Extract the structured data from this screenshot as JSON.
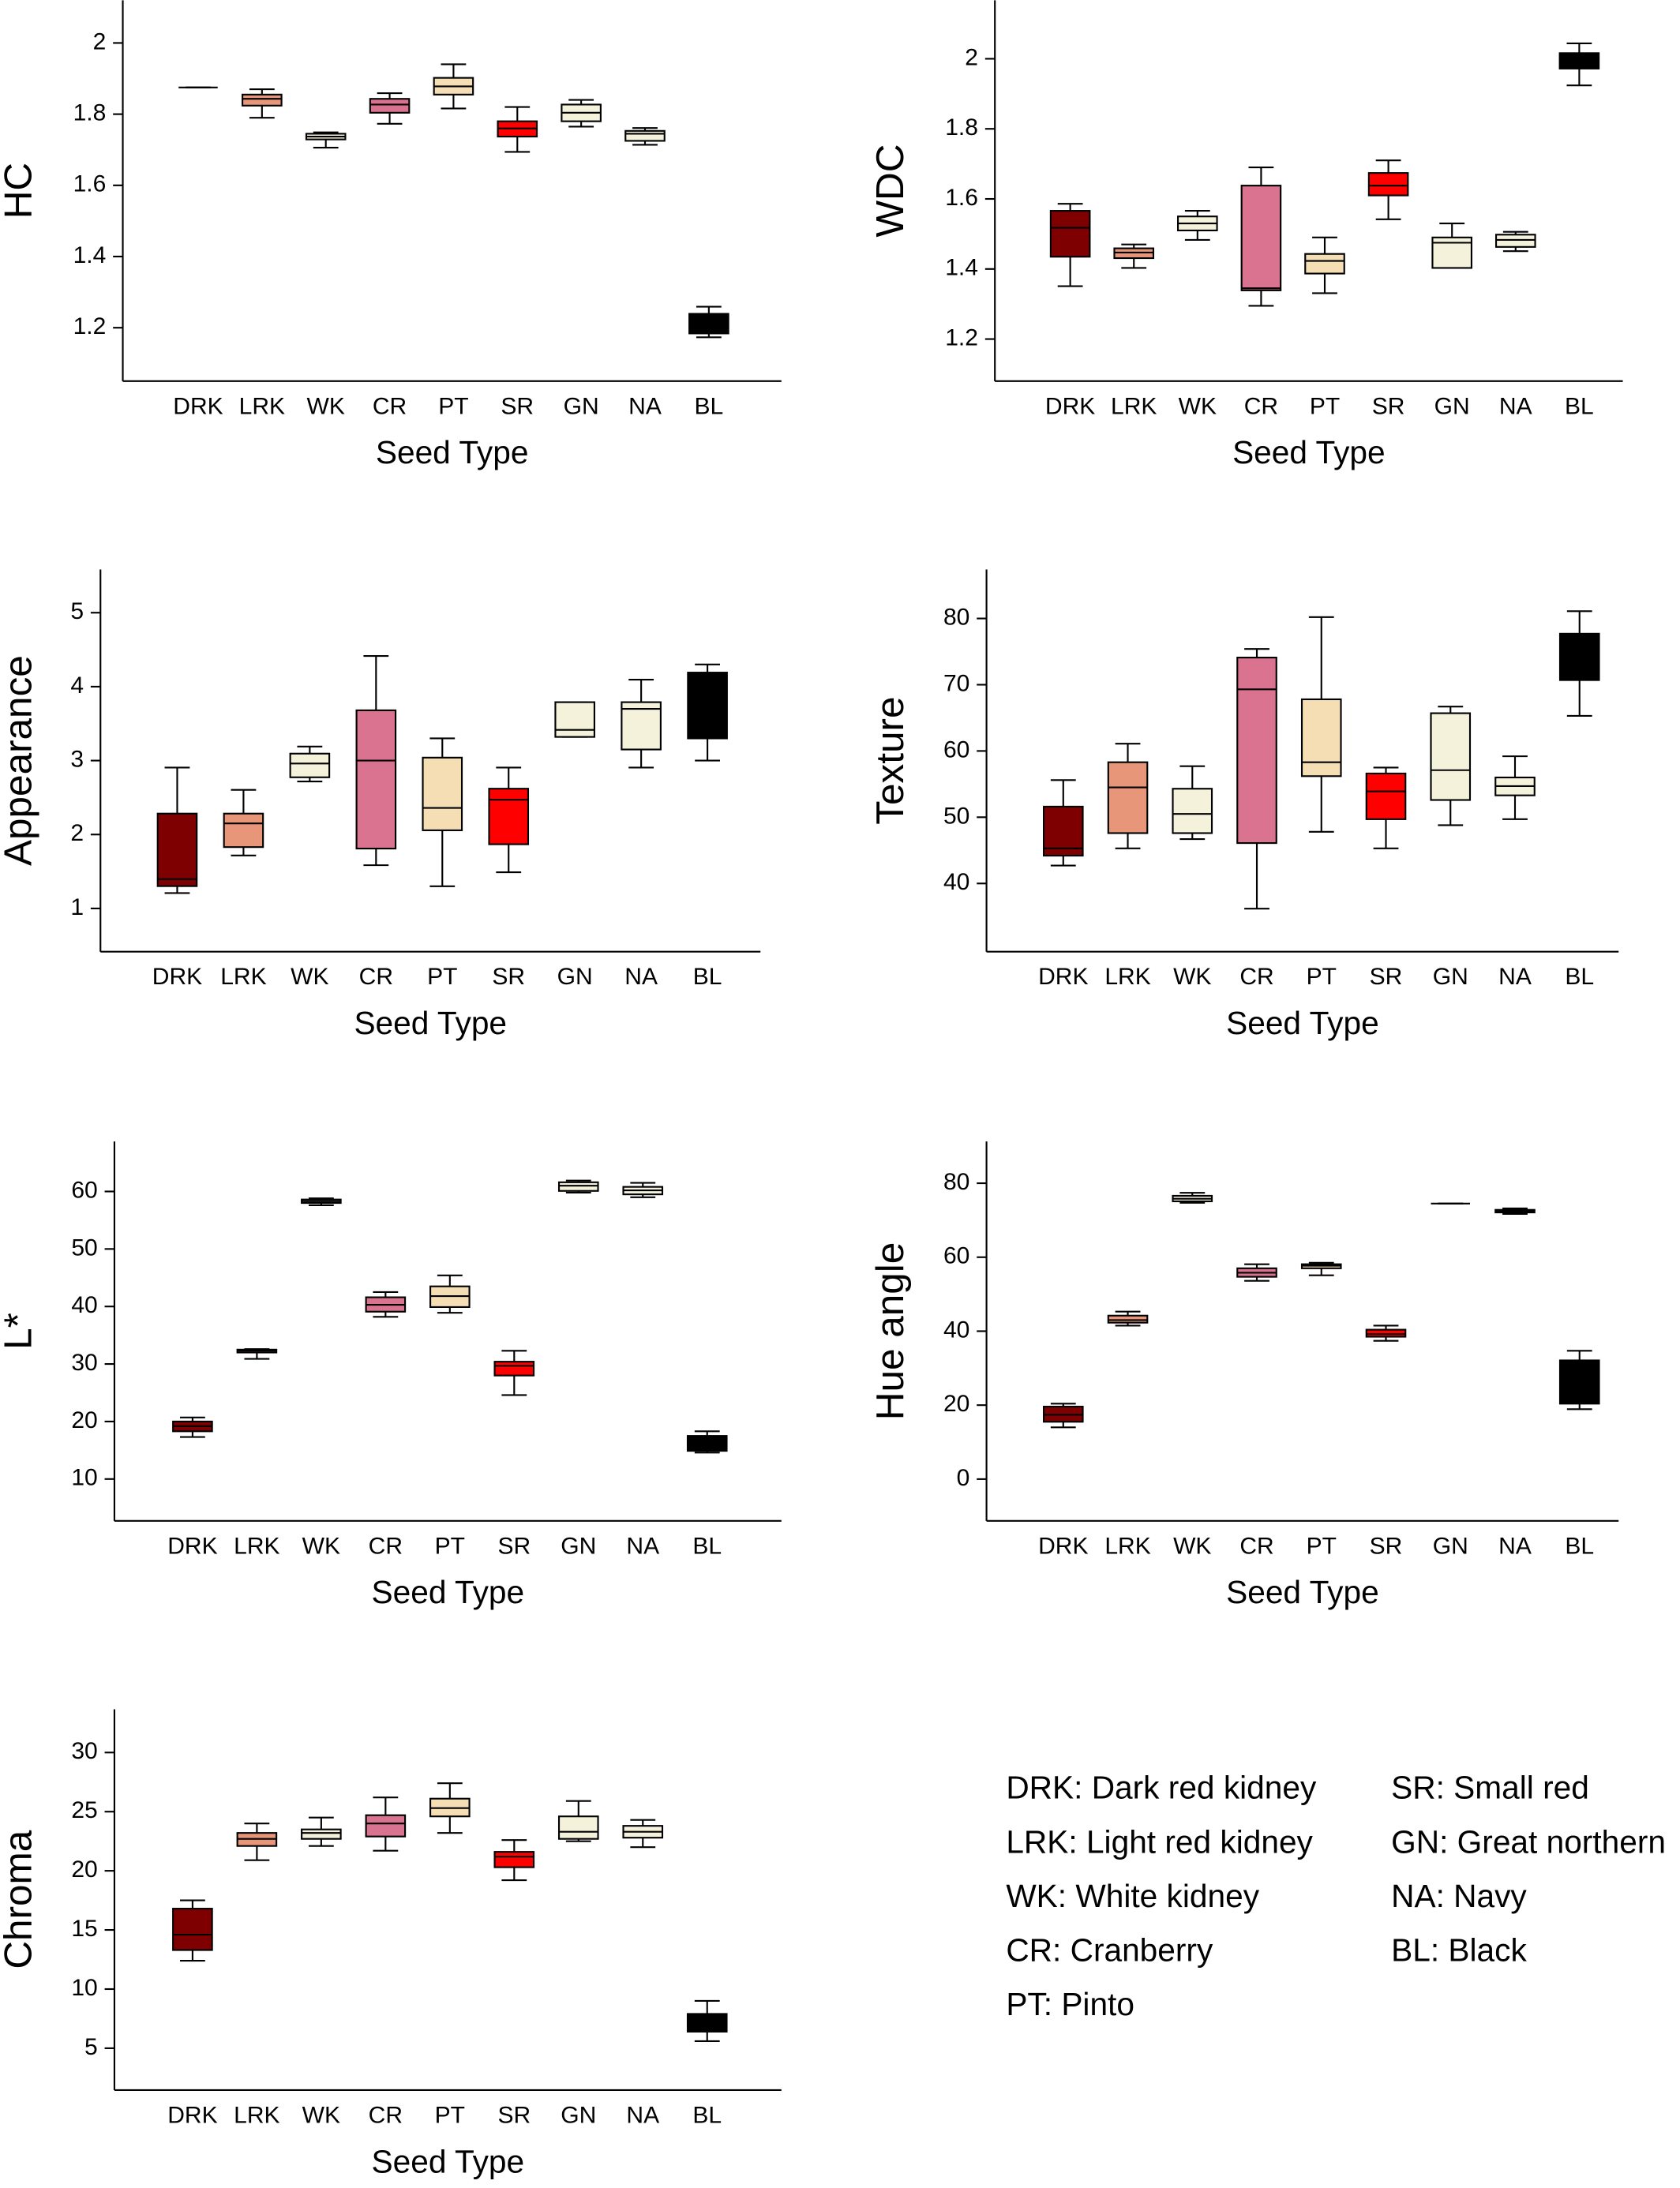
{
  "chart_data": [
    {
      "type": "box",
      "ylabel": "HC",
      "xlabel": "Seed Type",
      "ylim": [
        1.05,
        2.12
      ],
      "yticks": [
        1.2,
        1.4,
        1.6,
        1.8,
        2
      ],
      "categories": [
        "DRK",
        "LRK",
        "WK",
        "CR",
        "PT",
        "SR",
        "GN",
        "NA",
        "BL"
      ],
      "colors": [
        "#7f0000",
        "#e8967a",
        "#f5f2dc",
        "#d9738f",
        "#f5deb3",
        "#ff0000",
        "#f5f2dc",
        "#f5f2dc",
        "#000000"
      ],
      "boxes": [
        {
          "low": 1.875,
          "q1": 1.875,
          "median": 1.875,
          "q3": 1.875,
          "high": 1.875
        },
        {
          "low": 1.79,
          "q1": 1.824,
          "median": 1.843,
          "q3": 1.855,
          "high": 1.87
        },
        {
          "low": 1.706,
          "q1": 1.729,
          "median": 1.737,
          "q3": 1.745,
          "high": 1.749
        },
        {
          "low": 1.773,
          "q1": 1.804,
          "median": 1.827,
          "q3": 1.843,
          "high": 1.859
        },
        {
          "low": 1.816,
          "q1": 1.855,
          "median": 1.878,
          "q3": 1.902,
          "high": 1.94
        },
        {
          "low": 1.694,
          "q1": 1.737,
          "median": 1.76,
          "q3": 1.78,
          "high": 1.82
        },
        {
          "low": 1.765,
          "q1": 1.78,
          "median": 1.804,
          "q3": 1.827,
          "high": 1.84
        },
        {
          "low": 1.714,
          "q1": 1.725,
          "median": 1.745,
          "q3": 1.753,
          "high": 1.761
        },
        {
          "low": 1.173,
          "q1": 1.184,
          "median": 1.204,
          "q3": 1.239,
          "high": 1.259
        }
      ]
    },
    {
      "type": "box",
      "ylabel": "WDC",
      "xlabel": "Seed Type",
      "ylim": [
        1.08,
        2.167
      ],
      "yticks": [
        1.2,
        1.4,
        1.6,
        1.8,
        2
      ],
      "categories": [
        "DRK",
        "LRK",
        "WK",
        "CR",
        "PT",
        "SR",
        "GN",
        "NA",
        "BL"
      ],
      "colors": [
        "#7f0000",
        "#e8967a",
        "#f5f2dc",
        "#d9738f",
        "#f5deb3",
        "#ff0000",
        "#f5f2dc",
        "#f5f2dc",
        "#000000"
      ],
      "boxes": [
        {
          "low": 1.351,
          "q1": 1.435,
          "median": 1.518,
          "q3": 1.566,
          "high": 1.586
        },
        {
          "low": 1.403,
          "q1": 1.431,
          "median": 1.447,
          "q3": 1.459,
          "high": 1.47
        },
        {
          "low": 1.483,
          "q1": 1.51,
          "median": 1.53,
          "q3": 1.55,
          "high": 1.566
        },
        {
          "low": 1.295,
          "q1": 1.339,
          "median": 1.345,
          "q3": 1.638,
          "high": 1.69
        },
        {
          "low": 1.331,
          "q1": 1.387,
          "median": 1.423,
          "q3": 1.443,
          "high": 1.49
        },
        {
          "low": 1.542,
          "q1": 1.61,
          "median": 1.638,
          "q3": 1.674,
          "high": 1.71
        },
        {
          "low": 1.403,
          "q1": 1.403,
          "median": 1.475,
          "q3": 1.49,
          "high": 1.53
        },
        {
          "low": 1.451,
          "q1": 1.463,
          "median": 1.483,
          "q3": 1.498,
          "high": 1.506
        },
        {
          "low": 1.924,
          "q1": 1.972,
          "median": 1.996,
          "q3": 2.016,
          "high": 2.044
        }
      ]
    },
    {
      "type": "box",
      "ylabel": "Appearance",
      "xlabel": "Seed Type",
      "ylim": [
        0.415,
        5.585
      ],
      "yticks": [
        1,
        2,
        3,
        4,
        5
      ],
      "categories": [
        "DRK",
        "LRK",
        "WK",
        "CR",
        "PT",
        "SR",
        "GN",
        "NA",
        "BL"
      ],
      "colors": [
        "#7f0000",
        "#e8967a",
        "#f5f2dc",
        "#d9738f",
        "#f5deb3",
        "#ff0000",
        "#f5f2dc",
        "#f5f2dc",
        "#000000"
      ],
      "boxes": [
        {
          "low": 1.208,
          "q1": 1.302,
          "median": 1.396,
          "q3": 2.283,
          "high": 2.906
        },
        {
          "low": 1.717,
          "q1": 1.83,
          "median": 2.15,
          "q3": 2.283,
          "high": 2.604
        },
        {
          "low": 2.717,
          "q1": 2.774,
          "median": 2.96,
          "q3": 3.094,
          "high": 3.19
        },
        {
          "low": 1.585,
          "q1": 1.81,
          "median": 3.0,
          "q3": 3.68,
          "high": 4.415
        },
        {
          "low": 1.3,
          "q1": 2.057,
          "median": 2.36,
          "q3": 3.04,
          "high": 3.3
        },
        {
          "low": 1.49,
          "q1": 1.868,
          "median": 2.47,
          "q3": 2.62,
          "high": 2.906
        },
        {
          "low": 3.32,
          "q1": 3.32,
          "median": 3.415,
          "q3": 3.79,
          "high": 3.79
        },
        {
          "low": 2.906,
          "q1": 3.15,
          "median": 3.7,
          "q3": 3.79,
          "high": 4.094
        },
        {
          "low": 3.0,
          "q1": 3.3,
          "median": 3.8,
          "q3": 4.19,
          "high": 4.3
        }
      ]
    },
    {
      "type": "box",
      "ylabel": "Texture",
      "xlabel": "Seed Type",
      "ylim": [
        29.7,
        87.4
      ],
      "yticks": [
        40,
        50,
        60,
        70,
        80
      ],
      "categories": [
        "DRK",
        "LRK",
        "WK",
        "CR",
        "PT",
        "SR",
        "GN",
        "NA",
        "BL"
      ],
      "colors": [
        "#7f0000",
        "#e8967a",
        "#f5f2dc",
        "#d9738f",
        "#f5deb3",
        "#ff0000",
        "#f5f2dc",
        "#f5f2dc",
        "#000000"
      ],
      "boxes": [
        {
          "low": 42.7,
          "q1": 44.2,
          "median": 45.3,
          "q3": 51.6,
          "high": 55.6
        },
        {
          "low": 45.3,
          "q1": 47.6,
          "median": 54.5,
          "q3": 58.3,
          "high": 61.1
        },
        {
          "low": 46.7,
          "q1": 47.6,
          "median": 50.5,
          "q3": 54.3,
          "high": 57.7
        },
        {
          "low": 36.2,
          "q1": 46.1,
          "median": 69.3,
          "q3": 74.1,
          "high": 75.4
        },
        {
          "low": 47.8,
          "q1": 56.2,
          "median": 58.3,
          "q3": 67.8,
          "high": 80.2
        },
        {
          "low": 45.3,
          "q1": 49.7,
          "median": 53.9,
          "q3": 56.6,
          "high": 57.5
        },
        {
          "low": 48.8,
          "q1": 52.6,
          "median": 57.1,
          "q3": 65.7,
          "high": 66.7
        },
        {
          "low": 49.7,
          "q1": 53.3,
          "median": 54.7,
          "q3": 56.0,
          "high": 59.2
        },
        {
          "low": 65.3,
          "q1": 70.7,
          "median": 74.3,
          "q3": 77.7,
          "high": 81.1
        }
      ]
    },
    {
      "type": "box",
      "ylabel": "L*",
      "xlabel": "Seed Type",
      "ylim": [
        2.72,
        68.7
      ],
      "yticks": [
        10,
        20,
        30,
        40,
        50,
        60
      ],
      "categories": [
        "DRK",
        "LRK",
        "WK",
        "CR",
        "PT",
        "SR",
        "GN",
        "NA",
        "BL"
      ],
      "colors": [
        "#7f0000",
        "#e8967a",
        "#f5f2dc",
        "#d9738f",
        "#f5deb3",
        "#ff0000",
        "#f5f2dc",
        "#f5f2dc",
        "#000000"
      ],
      "boxes": [
        {
          "low": 17.3,
          "q1": 18.3,
          "median": 19.2,
          "q3": 20.0,
          "high": 20.7
        },
        {
          "low": 30.9,
          "q1": 32.0,
          "median": 32.3,
          "q3": 32.5,
          "high": 32.6
        },
        {
          "low": 57.6,
          "q1": 58.0,
          "median": 58.3,
          "q3": 58.6,
          "high": 58.8
        },
        {
          "low": 38.2,
          "q1": 39.1,
          "median": 40.3,
          "q3": 41.6,
          "high": 42.5
        },
        {
          "low": 38.9,
          "q1": 39.9,
          "median": 41.8,
          "q3": 43.5,
          "high": 45.4
        },
        {
          "low": 24.6,
          "q1": 28.0,
          "median": 29.7,
          "q3": 30.4,
          "high": 32.3
        },
        {
          "low": 59.8,
          "q1": 60.1,
          "median": 61.0,
          "q3": 61.6,
          "high": 61.9
        },
        {
          "low": 59.0,
          "q1": 59.5,
          "median": 60.2,
          "q3": 60.8,
          "high": 61.5
        },
        {
          "low": 14.6,
          "q1": 14.9,
          "median": 16.0,
          "q3": 17.5,
          "high": 18.3
        }
      ]
    },
    {
      "type": "box",
      "ylabel": "Hue angle",
      "xlabel": "Seed Type",
      "ylim": [
        -11.3,
        91.3
      ],
      "yticks": [
        0,
        20,
        40,
        60,
        80
      ],
      "categories": [
        "DRK",
        "LRK",
        "WK",
        "CR",
        "PT",
        "SR",
        "GN",
        "NA",
        "BL"
      ],
      "colors": [
        "#7f0000",
        "#e8967a",
        "#f5f2dc",
        "#d9738f",
        "#f5deb3",
        "#ff0000",
        "#f5f2dc",
        "#f5f2dc",
        "#000000"
      ],
      "boxes": [
        {
          "low": 14.0,
          "q1": 15.5,
          "median": 17.4,
          "q3": 19.6,
          "high": 20.4
        },
        {
          "low": 41.5,
          "q1": 42.3,
          "median": 43.0,
          "q3": 44.2,
          "high": 45.3
        },
        {
          "low": 74.7,
          "q1": 75.1,
          "median": 75.8,
          "q3": 76.6,
          "high": 77.4
        },
        {
          "low": 53.6,
          "q1": 54.7,
          "median": 55.8,
          "q3": 57.0,
          "high": 58.1
        },
        {
          "low": 55.1,
          "q1": 57.0,
          "median": 57.7,
          "q3": 58.1,
          "high": 58.5
        },
        {
          "low": 37.4,
          "q1": 38.5,
          "median": 39.2,
          "q3": 40.4,
          "high": 41.5
        },
        {
          "low": 74.5,
          "q1": 74.5,
          "median": 74.5,
          "q3": 74.5,
          "high": 74.5
        },
        {
          "low": 71.7,
          "q1": 72.1,
          "median": 72.5,
          "q3": 72.8,
          "high": 73.2
        },
        {
          "low": 18.9,
          "q1": 20.4,
          "median": 26.0,
          "q3": 32.1,
          "high": 34.7
        }
      ]
    },
    {
      "type": "box",
      "ylabel": "Chroma",
      "xlabel": "Seed Type",
      "ylim": [
        1.46,
        33.66
      ],
      "yticks": [
        5,
        10,
        15,
        20,
        25,
        30
      ],
      "categories": [
        "DRK",
        "LRK",
        "WK",
        "CR",
        "PT",
        "SR",
        "GN",
        "NA",
        "BL"
      ],
      "colors": [
        "#7f0000",
        "#e8967a",
        "#f5f2dc",
        "#d9738f",
        "#f5deb3",
        "#ff0000",
        "#f5f2dc",
        "#f5f2dc",
        "#000000"
      ],
      "boxes": [
        {
          "low": 12.4,
          "q1": 13.3,
          "median": 14.6,
          "q3": 16.8,
          "high": 17.5
        },
        {
          "low": 20.9,
          "q1": 22.1,
          "median": 22.7,
          "q3": 23.2,
          "high": 24.0
        },
        {
          "low": 22.1,
          "q1": 22.7,
          "median": 23.2,
          "q3": 23.5,
          "high": 24.5
        },
        {
          "low": 21.7,
          "q1": 22.9,
          "median": 24.0,
          "q3": 24.7,
          "high": 26.2
        },
        {
          "low": 23.2,
          "q1": 24.6,
          "median": 25.3,
          "q3": 26.1,
          "high": 27.4
        },
        {
          "low": 19.2,
          "q1": 20.3,
          "median": 21.2,
          "q3": 21.6,
          "high": 22.6
        },
        {
          "low": 22.5,
          "q1": 22.7,
          "median": 23.3,
          "q3": 24.6,
          "high": 25.9
        },
        {
          "low": 22.0,
          "q1": 22.8,
          "median": 23.3,
          "q3": 23.8,
          "high": 24.3
        },
        {
          "low": 5.6,
          "q1": 6.4,
          "median": 7.2,
          "q3": 7.9,
          "high": 9.0
        }
      ]
    }
  ],
  "legend": {
    "left": [
      "DRK: Dark red kidney",
      "LRK: Light red kidney",
      "WK: White kidney",
      "CR: Cranberry",
      "PT: Pinto"
    ],
    "right": [
      "SR: Small red",
      "GN: Great northern",
      "NA: Navy",
      "BL: Black"
    ]
  }
}
